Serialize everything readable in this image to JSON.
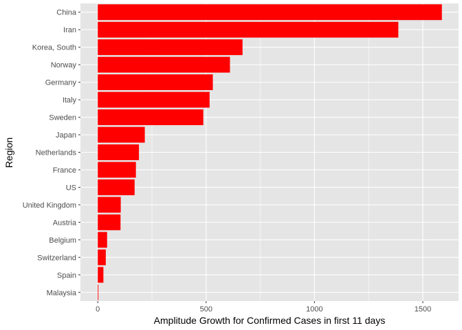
{
  "chart_data": {
    "type": "bar",
    "orientation": "horizontal",
    "categories": [
      "China",
      "Iran",
      "Korea, South",
      "Norway",
      "Germany",
      "Italy",
      "Sweden",
      "Japan",
      "Netherlands",
      "France",
      "US",
      "United Kingdom",
      "Austria",
      "Belgium",
      "Switzerland",
      "Spain",
      "Malaysia"
    ],
    "values": [
      1588,
      1387,
      668,
      610,
      531,
      516,
      487,
      217,
      190,
      176,
      170,
      106,
      105,
      43,
      37,
      26,
      3
    ],
    "title": "",
    "xlabel": "Amplitude Growth for Confirmed Cases in first 11 days",
    "ylabel": "Region",
    "xlim": [
      -80,
      1665
    ],
    "x_ticks": [
      0,
      500,
      1000,
      1500
    ],
    "grid": true,
    "bar_color": "#ff0000",
    "panel_color": "#e5e5e5",
    "grid_color": "#ffffff"
  }
}
